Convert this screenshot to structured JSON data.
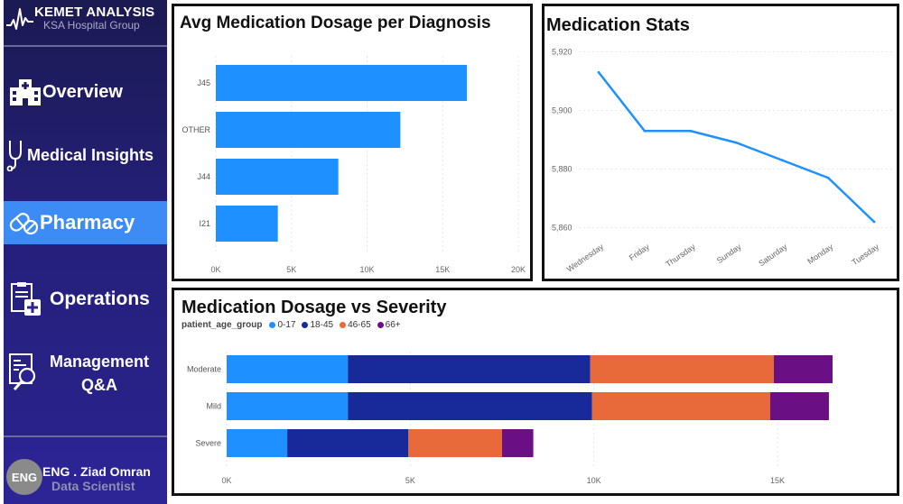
{
  "brand": {
    "title": "KEMET ANALYSIS",
    "subtitle": "KSA Hospital Group"
  },
  "nav": {
    "overview": "Overview",
    "medical": "Medical Insights",
    "pharmacy": "Pharmacy",
    "operations": "Operations",
    "management_line1": "Management",
    "management_line2": "Q&A"
  },
  "profile": {
    "avatar": "ENG",
    "name": "ENG . Ziad Omran",
    "role": "Data Scientist"
  },
  "colors": {
    "bar": "#1e90ff",
    "active_nav": "#3d8bf5",
    "line": "#1e90ff",
    "age_0_17": "#1e90ff",
    "age_18_45": "#18299a",
    "age_46_65": "#e8693a",
    "age_66_plus": "#6a0f84"
  },
  "chart_data": [
    {
      "type": "bar",
      "orientation": "horizontal",
      "title": "Avg Medication Dosage per Diagnosis",
      "categories": [
        "J45",
        "OTHER",
        "J44",
        "I21"
      ],
      "values": [
        16600,
        12200,
        8100,
        4100
      ],
      "xlim": [
        0,
        20000
      ],
      "xticks": [
        "0K",
        "5K",
        "10K",
        "15K",
        "20K"
      ],
      "xtick_values": [
        0,
        5000,
        10000,
        15000,
        20000
      ]
    },
    {
      "type": "line",
      "title": "Medication Stats",
      "x": [
        "Wednesday",
        "Friday",
        "Thursday",
        "Sunday",
        "Saturday",
        "Monday",
        "Tuesday"
      ],
      "values": [
        5913,
        5893,
        5893,
        5889,
        5883,
        5877,
        5862
      ],
      "ylim": [
        5858,
        5922
      ],
      "yticks": [
        "5,920",
        "5,900",
        "5,880",
        "5,860"
      ],
      "ytick_values": [
        5920,
        5900,
        5880,
        5860
      ]
    },
    {
      "type": "bar",
      "orientation": "horizontal",
      "stacked": true,
      "title": "Medication Dosage vs Severity",
      "legend_title": "patient_age_group",
      "categories": [
        "Moderate",
        "Mild",
        "Severe"
      ],
      "series": [
        {
          "name": "0-17",
          "values": [
            3300,
            3300,
            1650
          ]
        },
        {
          "name": "18-45",
          "values": [
            6600,
            6650,
            3300
          ]
        },
        {
          "name": "46-65",
          "values": [
            5000,
            4850,
            2550
          ]
        },
        {
          "name": "66+",
          "values": [
            1600,
            1600,
            850
          ]
        }
      ],
      "xlim": [
        0,
        16500
      ],
      "xticks": [
        "0K",
        "5K",
        "10K",
        "15K"
      ],
      "xtick_values": [
        0,
        5000,
        10000,
        15000
      ]
    }
  ]
}
